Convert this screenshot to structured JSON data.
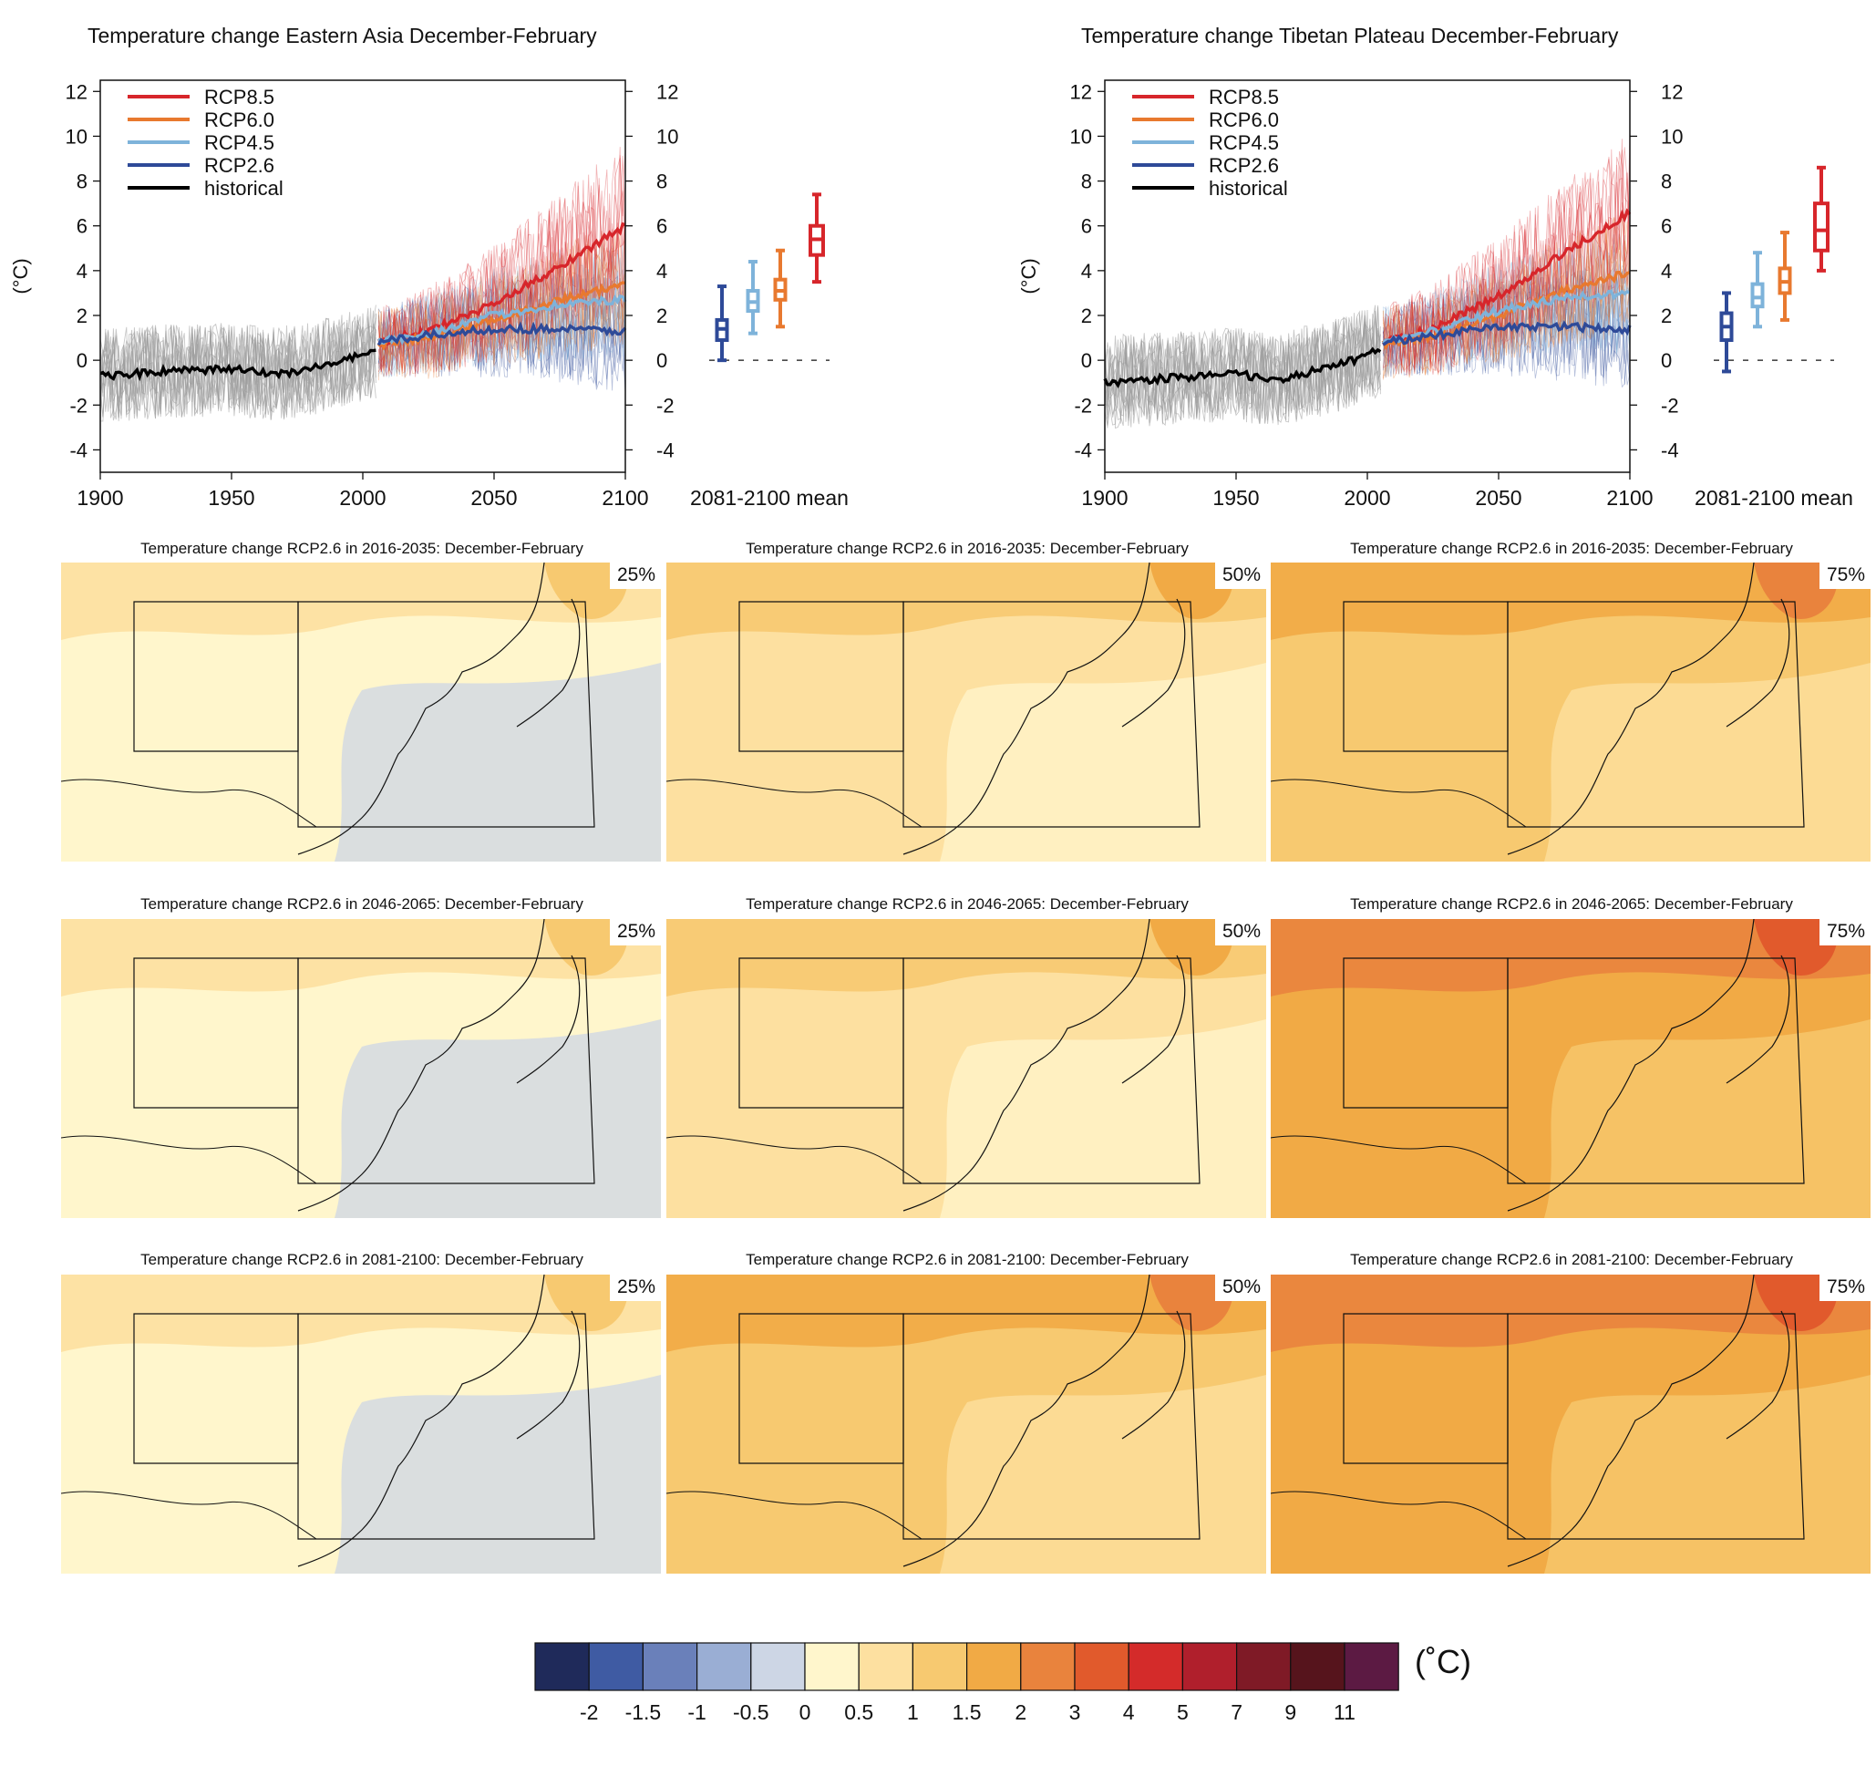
{
  "timeseries": [
    {
      "title": "Temperature change Eastern Asia December-February",
      "ylabel": "(°C)",
      "xticks": [
        "1900",
        "1950",
        "2000",
        "2050",
        "2100"
      ],
      "yticks": [
        "12",
        "10",
        "8",
        "6",
        "4",
        "2",
        "0",
        "-2",
        "-4"
      ],
      "boxplot_label": "2081-2100 mean"
    },
    {
      "title": "Temperature change Tibetan Plateau December-February",
      "ylabel": "(°C)",
      "xticks": [
        "1900",
        "1950",
        "2000",
        "2050",
        "2100"
      ],
      "yticks": [
        "12",
        "10",
        "8",
        "6",
        "4",
        "2",
        "0",
        "-2",
        "-4"
      ],
      "boxplot_label": "2081-2100 mean"
    }
  ],
  "legend": [
    "RCP8.5",
    "RCP6.0",
    "RCP4.5",
    "RCP2.6",
    "historical"
  ],
  "colors": {
    "rcp85": "#d7262b",
    "rcp60": "#e8792f",
    "rcp45": "#7eb3da",
    "rcp26": "#2e4a98",
    "historical": "#000000",
    "ensemble": "#9a9a9a"
  },
  "chart_data": [
    {
      "type": "line",
      "title": "Temperature change Eastern Asia December-February",
      "ylabel": "(°C)",
      "xlim": [
        1900,
        2100
      ],
      "ylim": [
        -5,
        12.5
      ],
      "series": [
        {
          "name": "historical",
          "x": [
            1900,
            1925,
            1950,
            1965,
            1975,
            1990,
            2005
          ],
          "values": [
            -0.7,
            -0.5,
            -0.4,
            -0.6,
            -0.5,
            -0.1,
            0.4
          ]
        },
        {
          "name": "RCP8.5",
          "x": [
            2006,
            2025,
            2050,
            2075,
            2100
          ],
          "values": [
            0.8,
            1.3,
            2.5,
            4.2,
            6.0
          ]
        },
        {
          "name": "RCP6.0",
          "x": [
            2006,
            2025,
            2050,
            2075,
            2100
          ],
          "values": [
            0.7,
            1.0,
            1.8,
            2.7,
            3.4
          ]
        },
        {
          "name": "RCP4.5",
          "x": [
            2006,
            2025,
            2050,
            2075,
            2100
          ],
          "values": [
            0.8,
            1.2,
            2.0,
            2.5,
            2.7
          ]
        },
        {
          "name": "RCP2.6",
          "x": [
            2006,
            2025,
            2050,
            2075,
            2100
          ],
          "values": [
            0.8,
            1.1,
            1.4,
            1.4,
            1.3
          ]
        }
      ],
      "boxplot_2081_2100": [
        {
          "name": "RCP2.6",
          "min": 0.0,
          "q1": 0.9,
          "median": 1.4,
          "q3": 1.8,
          "max": 3.3
        },
        {
          "name": "RCP4.5",
          "min": 1.2,
          "q1": 2.2,
          "median": 2.6,
          "q3": 3.1,
          "max": 4.4
        },
        {
          "name": "RCP6.0",
          "min": 1.5,
          "q1": 2.7,
          "median": 3.1,
          "q3": 3.6,
          "max": 4.9
        },
        {
          "name": "RCP8.5",
          "min": 3.5,
          "q1": 4.7,
          "median": 5.4,
          "q3": 6.0,
          "max": 7.4
        }
      ]
    },
    {
      "type": "line",
      "title": "Temperature change Tibetan Plateau December-February",
      "ylabel": "(°C)",
      "xlim": [
        1900,
        2100
      ],
      "ylim": [
        -5,
        12.5
      ],
      "series": [
        {
          "name": "historical",
          "x": [
            1900,
            1925,
            1950,
            1965,
            1975,
            1990,
            2005
          ],
          "values": [
            -1.0,
            -0.8,
            -0.6,
            -0.9,
            -0.6,
            -0.2,
            0.5
          ]
        },
        {
          "name": "RCP8.5",
          "x": [
            2006,
            2025,
            2050,
            2075,
            2100
          ],
          "values": [
            0.8,
            1.4,
            2.9,
            4.8,
            6.6
          ]
        },
        {
          "name": "RCP6.0",
          "x": [
            2006,
            2025,
            2050,
            2075,
            2100
          ],
          "values": [
            0.7,
            1.1,
            2.0,
            3.1,
            3.9
          ]
        },
        {
          "name": "RCP4.5",
          "x": [
            2006,
            2025,
            2050,
            2075,
            2100
          ],
          "values": [
            0.8,
            1.3,
            2.2,
            2.8,
            3.0
          ]
        },
        {
          "name": "RCP2.6",
          "x": [
            2006,
            2025,
            2050,
            2075,
            2100
          ],
          "values": [
            0.8,
            1.1,
            1.5,
            1.5,
            1.4
          ]
        }
      ],
      "boxplot_2081_2100": [
        {
          "name": "RCP2.6",
          "min": -0.5,
          "q1": 0.9,
          "median": 1.5,
          "q3": 2.1,
          "max": 3.0
        },
        {
          "name": "RCP4.5",
          "min": 1.5,
          "q1": 2.4,
          "median": 2.8,
          "q3": 3.4,
          "max": 4.8
        },
        {
          "name": "RCP6.0",
          "min": 1.8,
          "q1": 3.0,
          "median": 3.5,
          "q3": 4.1,
          "max": 5.7
        },
        {
          "name": "RCP8.5",
          "min": 4.0,
          "q1": 4.9,
          "median": 5.8,
          "q3": 7.0,
          "max": 8.6
        }
      ]
    }
  ],
  "maps": [
    {
      "title": "Temperature change RCP2.6 in 2016-2035: December-February",
      "percentile": "25%",
      "level": 0.5
    },
    {
      "title": "Temperature change RCP2.6 in 2016-2035: December-February",
      "percentile": "50%",
      "level": 1.0
    },
    {
      "title": "Temperature change RCP2.6 in 2016-2035: December-February",
      "percentile": "75%",
      "level": 1.5
    },
    {
      "title": "Temperature change RCP2.6 in 2046-2065: December-February",
      "percentile": "25%",
      "level": 0.5
    },
    {
      "title": "Temperature change RCP2.6 in 2046-2065: December-February",
      "percentile": "50%",
      "level": 1.0
    },
    {
      "title": "Temperature change RCP2.6 in 2046-2065: December-February",
      "percentile": "75%",
      "level": 2.0
    },
    {
      "title": "Temperature change RCP2.6 in 2081-2100: December-February",
      "percentile": "25%",
      "level": 0.5
    },
    {
      "title": "Temperature change RCP2.6 in 2081-2100: December-February",
      "percentile": "50%",
      "level": 1.5
    },
    {
      "title": "Temperature change RCP2.6 in 2081-2100: December-February",
      "percentile": "75%",
      "level": 2.0
    }
  ],
  "colorbar": {
    "unit": "(˚C)",
    "labels": [
      "-2",
      "-1.5",
      "-1",
      "-0.5",
      "0",
      "0.5",
      "1",
      "1.5",
      "2",
      "3",
      "4",
      "5",
      "7",
      "9",
      "11"
    ],
    "colors": [
      "#1f2a5a",
      "#3f5ba3",
      "#6a80ba",
      "#9aaed4",
      "#cdd6e5",
      "#fff6cc",
      "#fde0a0",
      "#f7c970",
      "#f1aa45",
      "#e9833d",
      "#e15a2c",
      "#d42b2a",
      "#b01f2c",
      "#7f1a26",
      "#56141c",
      "#5c1a43"
    ]
  }
}
